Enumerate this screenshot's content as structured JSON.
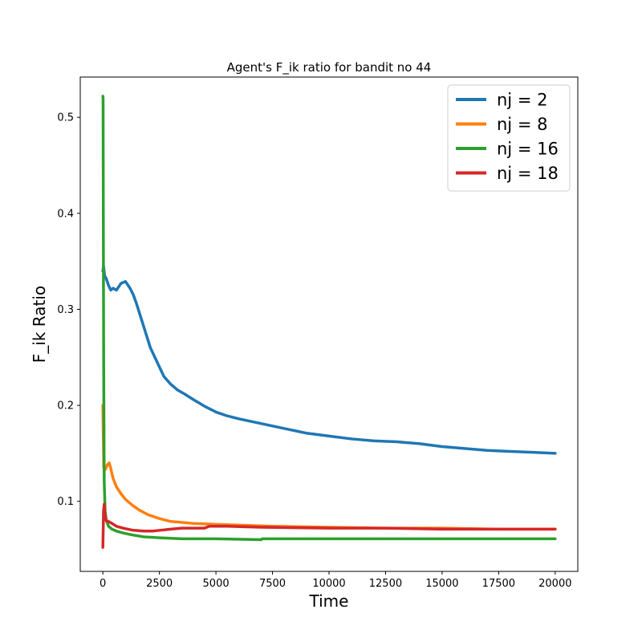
{
  "chart_data": {
    "type": "line",
    "title": "Agent's F_ik ratio for bandit no 44",
    "xlabel": "Time",
    "ylabel": "F_ik Ratio",
    "xlim": [
      -1000,
      21000
    ],
    "ylim": [
      0.027,
      0.542
    ],
    "xticks": [
      0,
      2500,
      5000,
      7500,
      10000,
      12500,
      15000,
      17500,
      20000
    ],
    "xtick_labels": [
      "0",
      "2500",
      "5000",
      "7500",
      "10000",
      "12500",
      "15000",
      "17500",
      "20000"
    ],
    "yticks": [
      0.1,
      0.2,
      0.3,
      0.4,
      0.5
    ],
    "ytick_labels": [
      "0.1",
      "0.2",
      "0.3",
      "0.4",
      "0.5"
    ],
    "grid": false,
    "legend_position": "top-right",
    "series": [
      {
        "name": "nj = 2",
        "color": "#1f77b4",
        "x": [
          0,
          30,
          80,
          150,
          250,
          350,
          450,
          600,
          800,
          1000,
          1200,
          1350,
          1500,
          1700,
          1900,
          2100,
          2300,
          2500,
          2700,
          3000,
          3300,
          3600,
          4000,
          4500,
          5000,
          5500,
          6000,
          7000,
          8000,
          9000,
          10000,
          11000,
          12000,
          13000,
          14000,
          15000,
          16000,
          17000,
          18000,
          19000,
          20000
        ],
        "y": [
          0.34,
          0.345,
          0.335,
          0.332,
          0.325,
          0.32,
          0.322,
          0.32,
          0.327,
          0.329,
          0.322,
          0.315,
          0.305,
          0.29,
          0.275,
          0.26,
          0.25,
          0.24,
          0.23,
          0.222,
          0.216,
          0.212,
          0.206,
          0.199,
          0.193,
          0.189,
          0.186,
          0.181,
          0.176,
          0.171,
          0.168,
          0.165,
          0.163,
          0.162,
          0.16,
          0.157,
          0.155,
          0.153,
          0.152,
          0.151,
          0.15
        ]
      },
      {
        "name": "nj = 8",
        "color": "#ff7f0e",
        "x": [
          0,
          40,
          100,
          200,
          280,
          350,
          450,
          600,
          800,
          1000,
          1300,
          1600,
          2000,
          2500,
          3000,
          4000,
          5000,
          7500,
          10000,
          12500,
          15000,
          17500,
          20000
        ],
        "y": [
          0.2,
          0.135,
          0.133,
          0.138,
          0.14,
          0.134,
          0.124,
          0.115,
          0.108,
          0.102,
          0.096,
          0.091,
          0.086,
          0.082,
          0.079,
          0.077,
          0.076,
          0.074,
          0.073,
          0.072,
          0.072,
          0.071,
          0.071
        ]
      },
      {
        "name": "nj = 16",
        "color": "#2ca02c",
        "x": [
          0,
          10,
          20,
          35,
          60,
          100,
          150,
          250,
          400,
          600,
          900,
          1300,
          1800,
          2500,
          3500,
          5000,
          7000,
          7050,
          10000,
          12500,
          15000,
          17500,
          20000
        ],
        "y": [
          0.522,
          0.52,
          0.4,
          0.25,
          0.12,
          0.09,
          0.08,
          0.074,
          0.071,
          0.069,
          0.067,
          0.065,
          0.063,
          0.062,
          0.061,
          0.061,
          0.06,
          0.061,
          0.061,
          0.061,
          0.061,
          0.061,
          0.061
        ]
      },
      {
        "name": "nj = 18",
        "color": "#d62728",
        "x": [
          0,
          15,
          30,
          60,
          100,
          150,
          250,
          400,
          600,
          900,
          1300,
          1800,
          2200,
          2600,
          3000,
          3500,
          4500,
          4700,
          5500,
          7000,
          10000,
          12500,
          15000,
          17500,
          20000
        ],
        "y": [
          0.052,
          0.07,
          0.09,
          0.097,
          0.085,
          0.08,
          0.079,
          0.077,
          0.074,
          0.072,
          0.07,
          0.069,
          0.069,
          0.07,
          0.071,
          0.072,
          0.072,
          0.074,
          0.074,
          0.073,
          0.072,
          0.072,
          0.071,
          0.071,
          0.071
        ]
      }
    ]
  }
}
